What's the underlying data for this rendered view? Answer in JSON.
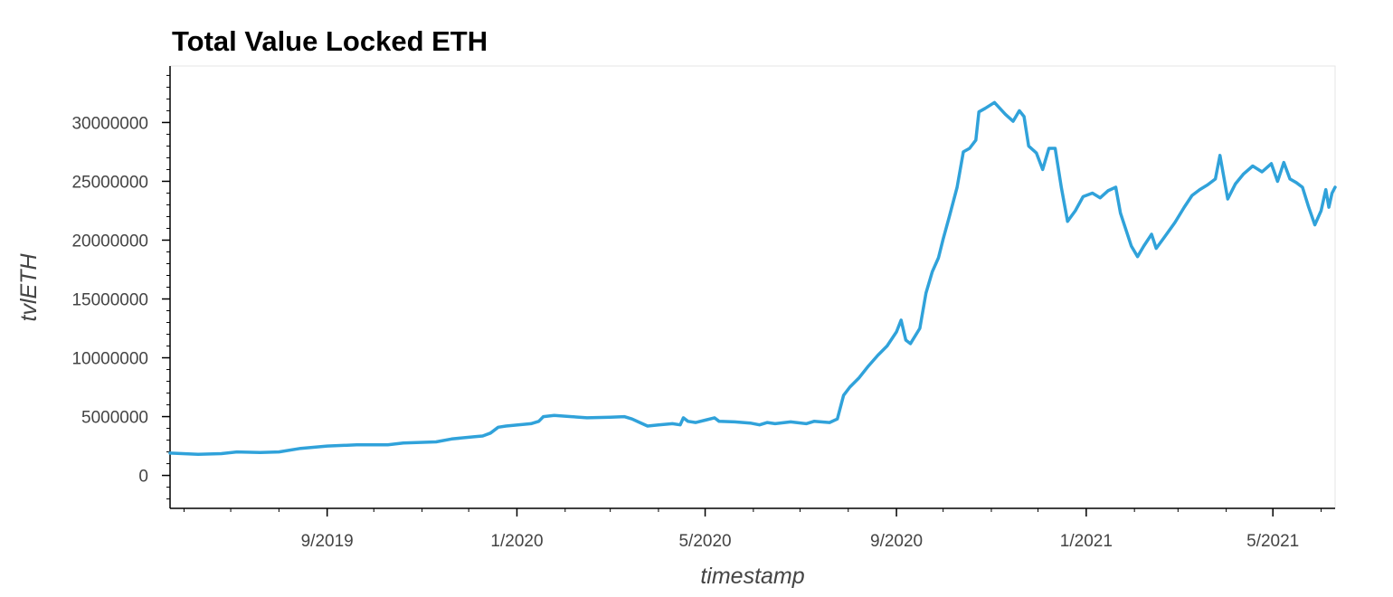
{
  "colors": {
    "line": "#30a2da",
    "axis": "#000000",
    "frame": "#e5e5e5",
    "text": "#444444"
  },
  "chart_data": {
    "type": "line",
    "title": "Total Value Locked ETH",
    "xlabel": "timestamp",
    "ylabel": "tvlETH",
    "grid": false,
    "legend": "none",
    "xlim": [
      "2019-05-23",
      "2021-06-10"
    ],
    "ylim": [
      -2800000,
      34800000
    ],
    "y_ticks": [
      0,
      5000000,
      10000000,
      15000000,
      20000000,
      25000000,
      30000000
    ],
    "y_tick_labels": [
      "0",
      "5000000",
      "10000000",
      "15000000",
      "20000000",
      "25000000",
      "30000000"
    ],
    "x_ticks": [
      "2019-09-01",
      "2020-01-01",
      "2020-05-01",
      "2020-09-01",
      "2021-01-01",
      "2021-05-01"
    ],
    "x_tick_labels": [
      "9/2019",
      "1/2020",
      "5/2020",
      "9/2020",
      "1/2021",
      "5/2021"
    ],
    "series": [
      {
        "points": [
          [
            "2019-05-23",
            1900000
          ],
          [
            "2019-06-10",
            1800000
          ],
          [
            "2019-06-25",
            1850000
          ],
          [
            "2019-07-05",
            2000000
          ],
          [
            "2019-07-20",
            1950000
          ],
          [
            "2019-08-01",
            2000000
          ],
          [
            "2019-08-15",
            2300000
          ],
          [
            "2019-09-01",
            2500000
          ],
          [
            "2019-09-20",
            2600000
          ],
          [
            "2019-10-10",
            2600000
          ],
          [
            "2019-10-20",
            2750000
          ],
          [
            "2019-11-10",
            2850000
          ],
          [
            "2019-11-20",
            3100000
          ],
          [
            "2019-12-05",
            3300000
          ],
          [
            "2019-12-10",
            3350000
          ],
          [
            "2019-12-15",
            3600000
          ],
          [
            "2019-12-20",
            4100000
          ],
          [
            "2019-12-25",
            4200000
          ],
          [
            "2020-01-10",
            4400000
          ],
          [
            "2020-01-15",
            4600000
          ],
          [
            "2020-01-18",
            5000000
          ],
          [
            "2020-01-25",
            5100000
          ],
          [
            "2020-02-05",
            5000000
          ],
          [
            "2020-02-15",
            4900000
          ],
          [
            "2020-03-01",
            4950000
          ],
          [
            "2020-03-10",
            5000000
          ],
          [
            "2020-03-15",
            4800000
          ],
          [
            "2020-03-20",
            4500000
          ],
          [
            "2020-03-25",
            4200000
          ],
          [
            "2020-04-01",
            4300000
          ],
          [
            "2020-04-10",
            4400000
          ],
          [
            "2020-04-15",
            4300000
          ],
          [
            "2020-04-17",
            4900000
          ],
          [
            "2020-04-20",
            4600000
          ],
          [
            "2020-04-25",
            4500000
          ],
          [
            "2020-05-01",
            4700000
          ],
          [
            "2020-05-07",
            4900000
          ],
          [
            "2020-05-10",
            4600000
          ],
          [
            "2020-05-20",
            4550000
          ],
          [
            "2020-05-30",
            4450000
          ],
          [
            "2020-06-05",
            4300000
          ],
          [
            "2020-06-10",
            4500000
          ],
          [
            "2020-06-15",
            4400000
          ],
          [
            "2020-06-25",
            4550000
          ],
          [
            "2020-07-05",
            4400000
          ],
          [
            "2020-07-10",
            4600000
          ],
          [
            "2020-07-20",
            4500000
          ],
          [
            "2020-07-25",
            4800000
          ],
          [
            "2020-07-29",
            6800000
          ],
          [
            "2020-08-02",
            7500000
          ],
          [
            "2020-08-08",
            8300000
          ],
          [
            "2020-08-14",
            9300000
          ],
          [
            "2020-08-20",
            10200000
          ],
          [
            "2020-08-26",
            11000000
          ],
          [
            "2020-09-01",
            12200000
          ],
          [
            "2020-09-04",
            13200000
          ],
          [
            "2020-09-07",
            11500000
          ],
          [
            "2020-09-10",
            11200000
          ],
          [
            "2020-09-16",
            12500000
          ],
          [
            "2020-09-20",
            15500000
          ],
          [
            "2020-09-24",
            17300000
          ],
          [
            "2020-09-28",
            18500000
          ],
          [
            "2020-10-01",
            20100000
          ],
          [
            "2020-10-05",
            22000000
          ],
          [
            "2020-10-10",
            24500000
          ],
          [
            "2020-10-14",
            27500000
          ],
          [
            "2020-10-18",
            27800000
          ],
          [
            "2020-10-22",
            28500000
          ],
          [
            "2020-10-24",
            30900000
          ],
          [
            "2020-10-28",
            31200000
          ],
          [
            "2020-11-03",
            31700000
          ],
          [
            "2020-11-10",
            30700000
          ],
          [
            "2020-11-15",
            30100000
          ],
          [
            "2020-11-19",
            31000000
          ],
          [
            "2020-11-22",
            30500000
          ],
          [
            "2020-11-25",
            28000000
          ],
          [
            "2020-11-30",
            27400000
          ],
          [
            "2020-12-04",
            26000000
          ],
          [
            "2020-12-08",
            27800000
          ],
          [
            "2020-12-12",
            27800000
          ],
          [
            "2020-12-16",
            24500000
          ],
          [
            "2020-12-20",
            21600000
          ],
          [
            "2020-12-25",
            22500000
          ],
          [
            "2020-12-30",
            23700000
          ],
          [
            "2021-01-05",
            24000000
          ],
          [
            "2021-01-10",
            23600000
          ],
          [
            "2021-01-15",
            24200000
          ],
          [
            "2021-01-20",
            24500000
          ],
          [
            "2021-01-23",
            22300000
          ],
          [
            "2021-01-30",
            19500000
          ],
          [
            "2021-02-03",
            18600000
          ],
          [
            "2021-02-07",
            19500000
          ],
          [
            "2021-02-12",
            20500000
          ],
          [
            "2021-02-15",
            19300000
          ],
          [
            "2021-02-20",
            20200000
          ],
          [
            "2021-02-27",
            21500000
          ],
          [
            "2021-03-05",
            22800000
          ],
          [
            "2021-03-10",
            23800000
          ],
          [
            "2021-03-15",
            24300000
          ],
          [
            "2021-03-20",
            24700000
          ],
          [
            "2021-03-25",
            25200000
          ],
          [
            "2021-03-28",
            27200000
          ],
          [
            "2021-04-02",
            23500000
          ],
          [
            "2021-04-07",
            24800000
          ],
          [
            "2021-04-12",
            25600000
          ],
          [
            "2021-04-18",
            26300000
          ],
          [
            "2021-04-24",
            25800000
          ],
          [
            "2021-04-30",
            26500000
          ],
          [
            "2021-05-04",
            25000000
          ],
          [
            "2021-05-08",
            26600000
          ],
          [
            "2021-05-12",
            25200000
          ],
          [
            "2021-05-16",
            24900000
          ],
          [
            "2021-05-20",
            24500000
          ],
          [
            "2021-05-24",
            22800000
          ],
          [
            "2021-05-28",
            21300000
          ],
          [
            "2021-06-01",
            22500000
          ],
          [
            "2021-06-04",
            24300000
          ],
          [
            "2021-06-06",
            22800000
          ],
          [
            "2021-06-08",
            24000000
          ],
          [
            "2021-06-10",
            24500000
          ]
        ]
      }
    ]
  }
}
